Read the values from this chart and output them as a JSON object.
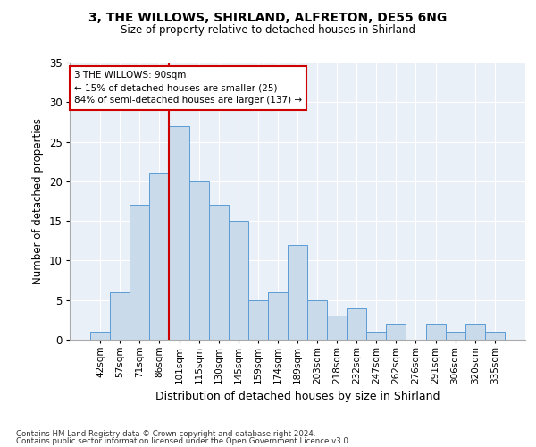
{
  "title1": "3, THE WILLOWS, SHIRLAND, ALFRETON, DE55 6NG",
  "title2": "Size of property relative to detached houses in Shirland",
  "xlabel": "Distribution of detached houses by size in Shirland",
  "ylabel": "Number of detached properties",
  "categories": [
    "42sqm",
    "57sqm",
    "71sqm",
    "86sqm",
    "101sqm",
    "115sqm",
    "130sqm",
    "145sqm",
    "159sqm",
    "174sqm",
    "189sqm",
    "203sqm",
    "218sqm",
    "232sqm",
    "247sqm",
    "262sqm",
    "276sqm",
    "291sqm",
    "306sqm",
    "320sqm",
    "335sqm"
  ],
  "values": [
    1,
    6,
    17,
    21,
    27,
    20,
    17,
    15,
    5,
    6,
    12,
    5,
    3,
    4,
    1,
    2,
    0,
    2,
    1,
    2,
    1
  ],
  "bar_color": "#c9daea",
  "bar_edge_color": "#5b9bd5",
  "marker_label": "3 THE WILLOWS: 90sqm",
  "annotation_line1": "← 15% of detached houses are smaller (25)",
  "annotation_line2": "84% of semi-detached houses are larger (137) →",
  "vline_color": "#cc0000",
  "annotation_box_edge": "#cc0000",
  "ylim": [
    0,
    35
  ],
  "yticks": [
    0,
    5,
    10,
    15,
    20,
    25,
    30,
    35
  ],
  "bg_color": "#eaf0f8",
  "footer1": "Contains HM Land Registry data © Crown copyright and database right 2024.",
  "footer2": "Contains public sector information licensed under the Open Government Licence v3.0."
}
